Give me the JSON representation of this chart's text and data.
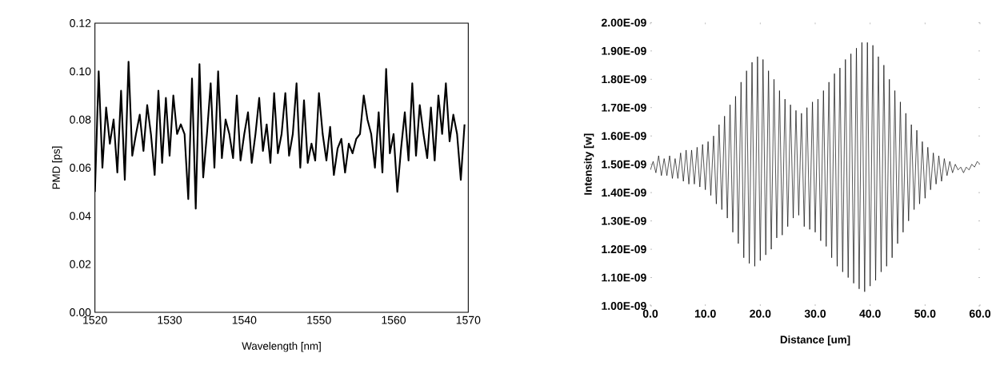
{
  "chart_data": [
    {
      "type": "line",
      "xlabel": "Wavelength [nm]",
      "ylabel": "PMD [ps]",
      "color": "#000000",
      "xlim": [
        1520,
        1570
      ],
      "ylim": [
        0,
        0.12
      ],
      "xticks": [
        1520,
        1530,
        1540,
        1550,
        1560,
        1570
      ],
      "yticks": [
        {
          "value": 0,
          "label": "0.00"
        },
        {
          "value": 0.02,
          "label": "0.02"
        },
        {
          "value": 0.04,
          "label": "0.04"
        },
        {
          "value": 0.06,
          "label": "0.06"
        },
        {
          "value": 0.08,
          "label": "0.08"
        },
        {
          "value": 0.1,
          "label": "0.10"
        },
        {
          "value": 0.12,
          "label": "0.12"
        }
      ],
      "x": [
        1520,
        1520.5,
        1521,
        1521.5,
        1522,
        1522.5,
        1523,
        1523.5,
        1524,
        1524.5,
        1525,
        1525.5,
        1526,
        1526.5,
        1527,
        1527.5,
        1528,
        1528.5,
        1529,
        1529.5,
        1530,
        1530.5,
        1531,
        1531.5,
        1532,
        1532.5,
        1533,
        1533.5,
        1534,
        1534.5,
        1535,
        1535.5,
        1536,
        1536.5,
        1537,
        1537.5,
        1538,
        1538.5,
        1539,
        1539.5,
        1540,
        1540.5,
        1541,
        1541.5,
        1542,
        1542.5,
        1543,
        1543.5,
        1544,
        1544.5,
        1545,
        1545.5,
        1546,
        1546.5,
        1547,
        1547.5,
        1548,
        1548.5,
        1549,
        1549.5,
        1550,
        1550.5,
        1551,
        1551.5,
        1552,
        1552.5,
        1553,
        1553.5,
        1554,
        1554.5,
        1555,
        1555.5,
        1556,
        1556.5,
        1557,
        1557.5,
        1558,
        1558.5,
        1559,
        1559.5,
        1560,
        1560.5,
        1561,
        1561.5,
        1562,
        1562.5,
        1563,
        1563.5,
        1564,
        1564.5,
        1565,
        1565.5,
        1566,
        1566.5,
        1567,
        1567.5,
        1568,
        1568.5,
        1569,
        1569.5
      ],
      "values": [
        0.05,
        0.1,
        0.06,
        0.085,
        0.07,
        0.08,
        0.058,
        0.092,
        0.055,
        0.104,
        0.065,
        0.074,
        0.082,
        0.067,
        0.086,
        0.074,
        0.057,
        0.092,
        0.062,
        0.089,
        0.065,
        0.09,
        0.074,
        0.078,
        0.074,
        0.047,
        0.097,
        0.043,
        0.103,
        0.056,
        0.074,
        0.095,
        0.06,
        0.1,
        0.064,
        0.08,
        0.074,
        0.064,
        0.09,
        0.063,
        0.074,
        0.083,
        0.062,
        0.074,
        0.089,
        0.067,
        0.078,
        0.062,
        0.091,
        0.066,
        0.074,
        0.091,
        0.065,
        0.074,
        0.095,
        0.06,
        0.088,
        0.062,
        0.07,
        0.063,
        0.091,
        0.074,
        0.063,
        0.077,
        0.057,
        0.068,
        0.072,
        0.058,
        0.07,
        0.066,
        0.072,
        0.074,
        0.09,
        0.08,
        0.074,
        0.06,
        0.083,
        0.058,
        0.101,
        0.066,
        0.074,
        0.05,
        0.068,
        0.083,
        0.063,
        0.095,
        0.065,
        0.086,
        0.074,
        0.064,
        0.085,
        0.063,
        0.09,
        0.074,
        0.095,
        0.071,
        0.082,
        0.074,
        0.055,
        0.078
      ]
    },
    {
      "type": "line",
      "xlabel": "Distance [um]",
      "ylabel": "Intensity [w]",
      "color": "#000000",
      "xlim": [
        0,
        60
      ],
      "ylim": [
        1e-09,
        2e-09
      ],
      "xticks": [
        {
          "value": 0,
          "label": "0.0"
        },
        {
          "value": 10,
          "label": "10.0"
        },
        {
          "value": 20,
          "label": "20.0"
        },
        {
          "value": 30,
          "label": "30.0"
        },
        {
          "value": 40,
          "label": "40.0"
        },
        {
          "value": 50,
          "label": "50.0"
        },
        {
          "value": 60,
          "label": "60.0"
        }
      ],
      "yticks": [
        {
          "value": 1e-09,
          "label": "1.00E-09"
        },
        {
          "value": 1.1e-09,
          "label": "1.10E-09"
        },
        {
          "value": 1.2e-09,
          "label": "1.20E-09"
        },
        {
          "value": 1.3e-09,
          "label": "1.30E-09"
        },
        {
          "value": 1.4e-09,
          "label": "1.40E-09"
        },
        {
          "value": 1.5e-09,
          "label": "1.50E-09"
        },
        {
          "value": 1.6e-09,
          "label": "1.60E-09"
        },
        {
          "value": 1.7e-09,
          "label": "1.70E-09"
        },
        {
          "value": 1.8e-09,
          "label": "1.80E-09"
        },
        {
          "value": 1.9e-09,
          "label": "1.90E-09"
        },
        {
          "value": 2e-09,
          "label": "2.00E-09"
        }
      ],
      "x": [
        0,
        0.5,
        1,
        1.5,
        2,
        2.5,
        3,
        3.5,
        4,
        4.5,
        5,
        5.5,
        6,
        6.5,
        7,
        7.5,
        8,
        8.5,
        9,
        9.5,
        10,
        10.5,
        11,
        11.5,
        12,
        12.5,
        13,
        13.5,
        14,
        14.5,
        15,
        15.5,
        16,
        16.5,
        17,
        17.5,
        18,
        18.5,
        19,
        19.5,
        20,
        20.5,
        21,
        21.5,
        22,
        22.5,
        23,
        23.5,
        24,
        24.5,
        25,
        25.5,
        26,
        26.5,
        27,
        27.5,
        28,
        28.5,
        29,
        29.5,
        30,
        30.5,
        31,
        31.5,
        32,
        32.5,
        33,
        33.5,
        34,
        34.5,
        35,
        35.5,
        36,
        36.5,
        37,
        37.5,
        38,
        38.5,
        39,
        39.5,
        40,
        40.5,
        41,
        41.5,
        42,
        42.5,
        43,
        43.5,
        44,
        44.5,
        45,
        45.5,
        46,
        46.5,
        47,
        47.5,
        48,
        48.5,
        49,
        49.5,
        50,
        50.5,
        51,
        51.5,
        52,
        52.5,
        53,
        53.5,
        54,
        54.5,
        55,
        55.5,
        56,
        56.5,
        57,
        57.5,
        58,
        58.5,
        59,
        59.5,
        60
      ],
      "values": [
        1.48e-09,
        1.51e-09,
        1.47e-09,
        1.53e-09,
        1.46e-09,
        1.52e-09,
        1.46e-09,
        1.53e-09,
        1.45e-09,
        1.52e-09,
        1.45e-09,
        1.54e-09,
        1.44e-09,
        1.55e-09,
        1.43e-09,
        1.55e-09,
        1.43e-09,
        1.56e-09,
        1.42e-09,
        1.57e-09,
        1.41e-09,
        1.58e-09,
        1.39e-09,
        1.6e-09,
        1.36e-09,
        1.64e-09,
        1.34e-09,
        1.67e-09,
        1.31e-09,
        1.71e-09,
        1.26e-09,
        1.74e-09,
        1.22e-09,
        1.79e-09,
        1.17e-09,
        1.83e-09,
        1.15e-09,
        1.86e-09,
        1.14e-09,
        1.88e-09,
        1.16e-09,
        1.87e-09,
        1.18e-09,
        1.83e-09,
        1.2e-09,
        1.8e-09,
        1.24e-09,
        1.76e-09,
        1.25e-09,
        1.73e-09,
        1.28e-09,
        1.71e-09,
        1.31e-09,
        1.69e-09,
        1.32e-09,
        1.68e-09,
        1.28e-09,
        1.7e-09,
        1.27e-09,
        1.72e-09,
        1.26e-09,
        1.73e-09,
        1.23e-09,
        1.76e-09,
        1.21e-09,
        1.79e-09,
        1.17e-09,
        1.82e-09,
        1.14e-09,
        1.84e-09,
        1.12e-09,
        1.87e-09,
        1.1e-09,
        1.89e-09,
        1.08e-09,
        1.91e-09,
        1.06e-09,
        1.93e-09,
        1.05e-09,
        1.93e-09,
        1.07e-09,
        1.92e-09,
        1.09e-09,
        1.88e-09,
        1.12e-09,
        1.85e-09,
        1.14e-09,
        1.8e-09,
        1.17e-09,
        1.76e-09,
        1.22e-09,
        1.72e-09,
        1.26e-09,
        1.68e-09,
        1.3e-09,
        1.64e-09,
        1.34e-09,
        1.62e-09,
        1.36e-09,
        1.58e-09,
        1.38e-09,
        1.56e-09,
        1.41e-09,
        1.54e-09,
        1.43e-09,
        1.53e-09,
        1.44e-09,
        1.52e-09,
        1.46e-09,
        1.51e-09,
        1.47e-09,
        1.5e-09,
        1.48e-09,
        1.49e-09,
        1.47e-09,
        1.49e-09,
        1.48e-09,
        1.5e-09,
        1.49e-09,
        1.51e-09,
        1.5e-09
      ]
    }
  ]
}
